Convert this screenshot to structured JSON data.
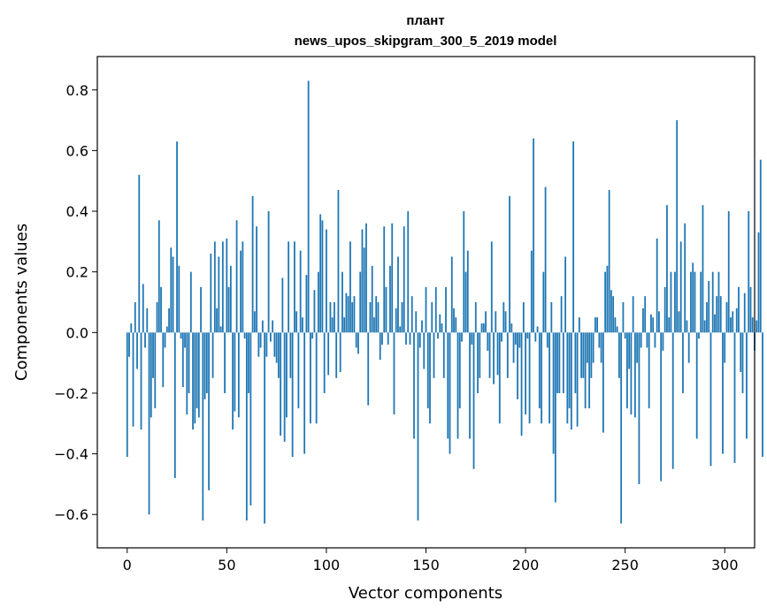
{
  "chart_data": {
    "type": "bar",
    "title": "плант",
    "subtitle": "news_upos_skipgram_300_5_2019 model",
    "xlabel": "Vector components",
    "ylabel": "Components values",
    "xlim": [
      -15,
      315
    ],
    "ylim": [
      -0.71,
      0.91
    ],
    "xticks": [
      0,
      50,
      100,
      150,
      200,
      250,
      300
    ],
    "yticks": [
      -0.6,
      -0.4,
      -0.2,
      0.0,
      0.2,
      0.4,
      0.6,
      0.8
    ],
    "xtick_labels": [
      "0",
      "50",
      "100",
      "150",
      "200",
      "250",
      "300"
    ],
    "ytick_labels": [
      "−0.6",
      "−0.4",
      "−0.2",
      "0.0",
      "0.2",
      "0.4",
      "0.6",
      "0.8"
    ],
    "bar_color": "#1f77b4",
    "grid": false,
    "values": [
      -0.41,
      -0.08,
      0.03,
      -0.31,
      0.1,
      -0.12,
      0.52,
      -0.32,
      0.16,
      -0.05,
      0.08,
      -0.6,
      -0.28,
      -0.15,
      -0.25,
      0.1,
      0.37,
      0.15,
      -0.18,
      -0.05,
      0.02,
      0.08,
      0.28,
      0.25,
      -0.48,
      0.63,
      0.22,
      -0.02,
      -0.18,
      -0.05,
      -0.27,
      -0.2,
      0.2,
      -0.32,
      -0.3,
      -0.25,
      -0.28,
      0.15,
      -0.62,
      -0.22,
      -0.2,
      -0.52,
      0.26,
      -0.15,
      0.3,
      0.08,
      0.25,
      0.02,
      0.3,
      -0.2,
      0.31,
      0.15,
      0.22,
      -0.32,
      -0.26,
      0.37,
      -0.28,
      0.27,
      0.3,
      -0.02,
      -0.62,
      -0.2,
      -0.57,
      0.45,
      0.07,
      0.35,
      -0.08,
      -0.05,
      0.04,
      -0.63,
      -0.08,
      0.4,
      -0.03,
      0.04,
      -0.08,
      -0.1,
      -0.15,
      -0.34,
      0.18,
      -0.36,
      -0.28,
      0.3,
      -0.15,
      -0.41,
      0.3,
      0.07,
      -0.25,
      0.27,
      0.05,
      -0.4,
      0.19,
      0.83,
      -0.3,
      -0.02,
      0.14,
      -0.3,
      0.2,
      0.39,
      0.37,
      -0.2,
      0.34,
      -0.14,
      0.1,
      0.05,
      0.1,
      -0.15,
      0.47,
      -0.13,
      0.2,
      0.05,
      0.13,
      0.12,
      0.3,
      0.1,
      0.12,
      -0.05,
      -0.07,
      0.2,
      0.34,
      0.28,
      0.36,
      -0.24,
      0.1,
      0.22,
      0.05,
      0.12,
      0.1,
      -0.09,
      -0.04,
      0.35,
      0.15,
      -0.04,
      0.22,
      0.36,
      -0.27,
      0.08,
      0.25,
      0.02,
      0.1,
      0.35,
      -0.04,
      0.4,
      -0.04,
      0.12,
      -0.35,
      0.07,
      -0.62,
      -0.05,
      0.04,
      -0.12,
      0.15,
      -0.25,
      -0.3,
      0.1,
      -0.15,
      0.15,
      -0.02,
      0.06,
      0.03,
      -0.15,
      0.15,
      -0.35,
      -0.4,
      0.25,
      0.08,
      0.05,
      -0.35,
      -0.25,
      -0.03,
      0.4,
      0.2,
      0.27,
      -0.35,
      -0.04,
      -0.45,
      0.1,
      -0.2,
      -0.15,
      0.03,
      0.03,
      0.07,
      -0.06,
      -0.15,
      0.3,
      -0.17,
      0.07,
      -0.14,
      -0.3,
      -0.03,
      0.1,
      0.07,
      -0.15,
      0.45,
      0.03,
      -0.1,
      -0.04,
      -0.22,
      -0.05,
      -0.34,
      0.1,
      -0.27,
      -0.02,
      -0.3,
      0.27,
      0.64,
      -0.03,
      0.02,
      -0.25,
      -0.3,
      0.2,
      0.48,
      -0.05,
      -0.3,
      0.1,
      -0.4,
      -0.56,
      -0.2,
      -0.2,
      0.12,
      -0.2,
      0.25,
      -0.3,
      -0.25,
      -0.32,
      0.63,
      -0.2,
      -0.31,
      0.05,
      -0.15,
      -0.15,
      -0.25,
      -0.1,
      -0.25,
      -0.15,
      -0.1,
      0.05,
      0.05,
      -0.05,
      -0.1,
      -0.33,
      0.2,
      0.22,
      0.47,
      0.14,
      0.12,
      0.05,
      0.02,
      -0.15,
      -0.63,
      0.1,
      -0.02,
      -0.25,
      -0.12,
      -0.27,
      0.12,
      -0.28,
      -0.1,
      -0.5,
      -0.05,
      0.08,
      0.12,
      -0.05,
      -0.25,
      0.06,
      0.05,
      -0.05,
      0.31,
      0.07,
      -0.49,
      -0.06,
      0.15,
      0.42,
      0.05,
      0.2,
      -0.45,
      0.2,
      0.7,
      0.07,
      0.3,
      -0.2,
      0.36,
      0.04,
      -0.1,
      0.2,
      0.23,
      0.2,
      -0.35,
      -0.02,
      0.2,
      0.42,
      0.04,
      0.1,
      0.17,
      -0.44,
      0.2,
      0.06,
      0.12,
      0.2,
      0.12,
      -0.4,
      -0.1,
      0.1,
      0.4,
      0.05,
      0.07,
      -0.43,
      0.08,
      0.15,
      -0.13,
      -0.2,
      0.13,
      -0.35,
      0.4,
      0.15,
      0.05,
      -0.06,
      0.04,
      0.33,
      0.57,
      -0.41
    ]
  }
}
